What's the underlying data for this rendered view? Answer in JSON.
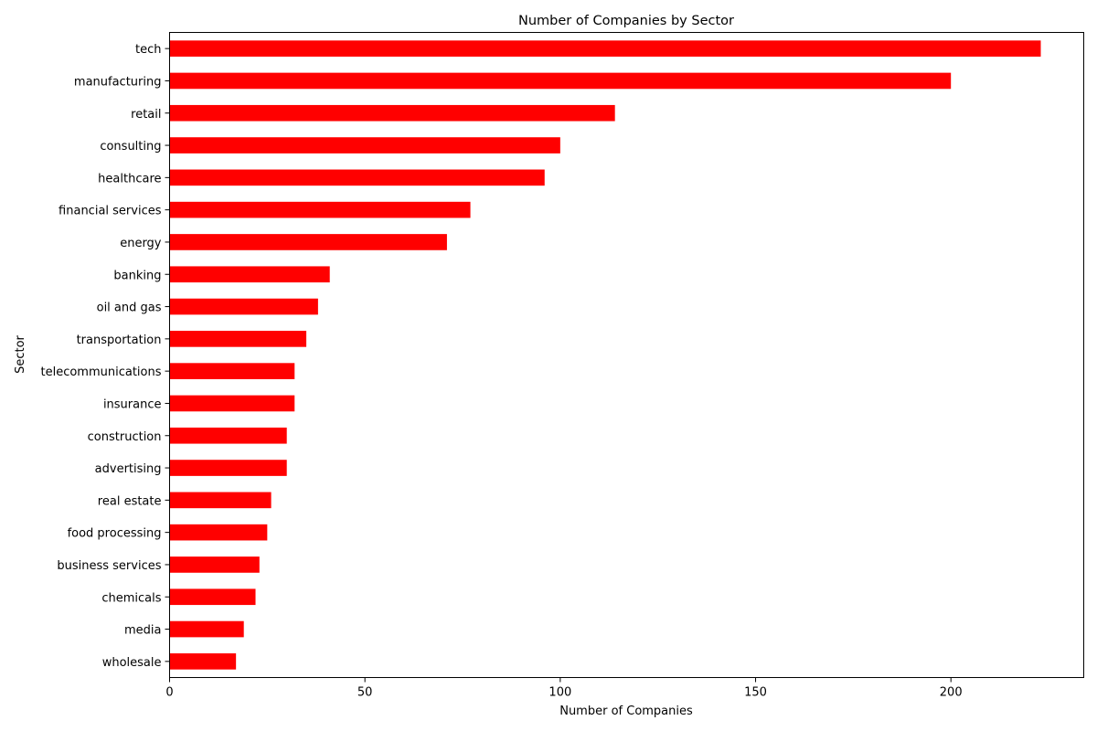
{
  "chart_data": {
    "type": "bar",
    "orientation": "horizontal",
    "title": "Number of Companies by Sector",
    "xlabel": "Number of Companies",
    "ylabel": "Sector",
    "categories": [
      "tech",
      "manufacturing",
      "retail",
      "consulting",
      "healthcare",
      "financial services",
      "energy",
      "banking",
      "oil and gas",
      "transportation",
      "telecommunications",
      "insurance",
      "construction",
      "advertising",
      "real estate",
      "food processing",
      "business services",
      "chemicals",
      "media",
      "wholesale"
    ],
    "values": [
      223,
      200,
      114,
      100,
      96,
      77,
      71,
      41,
      38,
      35,
      32,
      32,
      30,
      30,
      26,
      25,
      23,
      22,
      19,
      17
    ],
    "xlim": [
      0,
      234
    ],
    "xticks": [
      0,
      50,
      100,
      150,
      200
    ],
    "bar_color": "#ff0000",
    "grid": false,
    "legend": "none"
  }
}
